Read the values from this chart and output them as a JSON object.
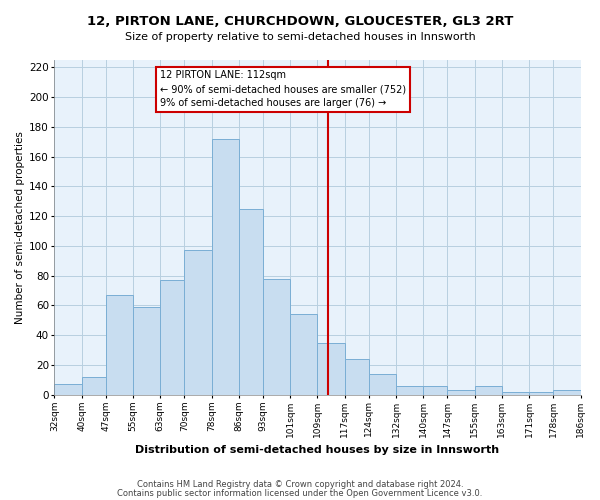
{
  "title": "12, PIRTON LANE, CHURCHDOWN, GLOUCESTER, GL3 2RT",
  "subtitle": "Size of property relative to semi-detached houses in Innsworth",
  "xlabel": "Distribution of semi-detached houses by size in Innsworth",
  "ylabel": "Number of semi-detached properties",
  "footnote1": "Contains HM Land Registry data © Crown copyright and database right 2024.",
  "footnote2": "Contains public sector information licensed under the Open Government Licence v3.0.",
  "bar_color": "#c8ddf0",
  "bar_edge_color": "#7aaed4",
  "background_color": "#ffffff",
  "plot_bg_color": "#e8f2fb",
  "grid_color": "#b8cfe0",
  "vline_value": 112,
  "vline_color": "#cc0000",
  "annotation_title": "12 PIRTON LANE: 112sqm",
  "annotation_line1": "← 90% of semi-detached houses are smaller (752)",
  "annotation_line2": "9% of semi-detached houses are larger (76) →",
  "bin_edges": [
    32,
    40,
    47,
    55,
    63,
    70,
    78,
    86,
    93,
    101,
    109,
    117,
    124,
    132,
    140,
    147,
    155,
    163,
    171,
    178,
    186
  ],
  "bin_labels": [
    "32sqm",
    "40sqm",
    "47sqm",
    "55sqm",
    "63sqm",
    "70sqm",
    "78sqm",
    "86sqm",
    "93sqm",
    "101sqm",
    "109sqm",
    "117sqm",
    "124sqm",
    "132sqm",
    "140sqm",
    "147sqm",
    "155sqm",
    "163sqm",
    "171sqm",
    "178sqm",
    "186sqm"
  ],
  "counts": [
    7,
    12,
    67,
    59,
    77,
    97,
    172,
    125,
    78,
    54,
    35,
    24,
    14,
    6,
    6,
    3,
    6,
    2,
    2,
    3
  ],
  "ylim": [
    0,
    225
  ],
  "yticks": [
    0,
    20,
    40,
    60,
    80,
    100,
    120,
    140,
    160,
    180,
    200,
    220
  ]
}
